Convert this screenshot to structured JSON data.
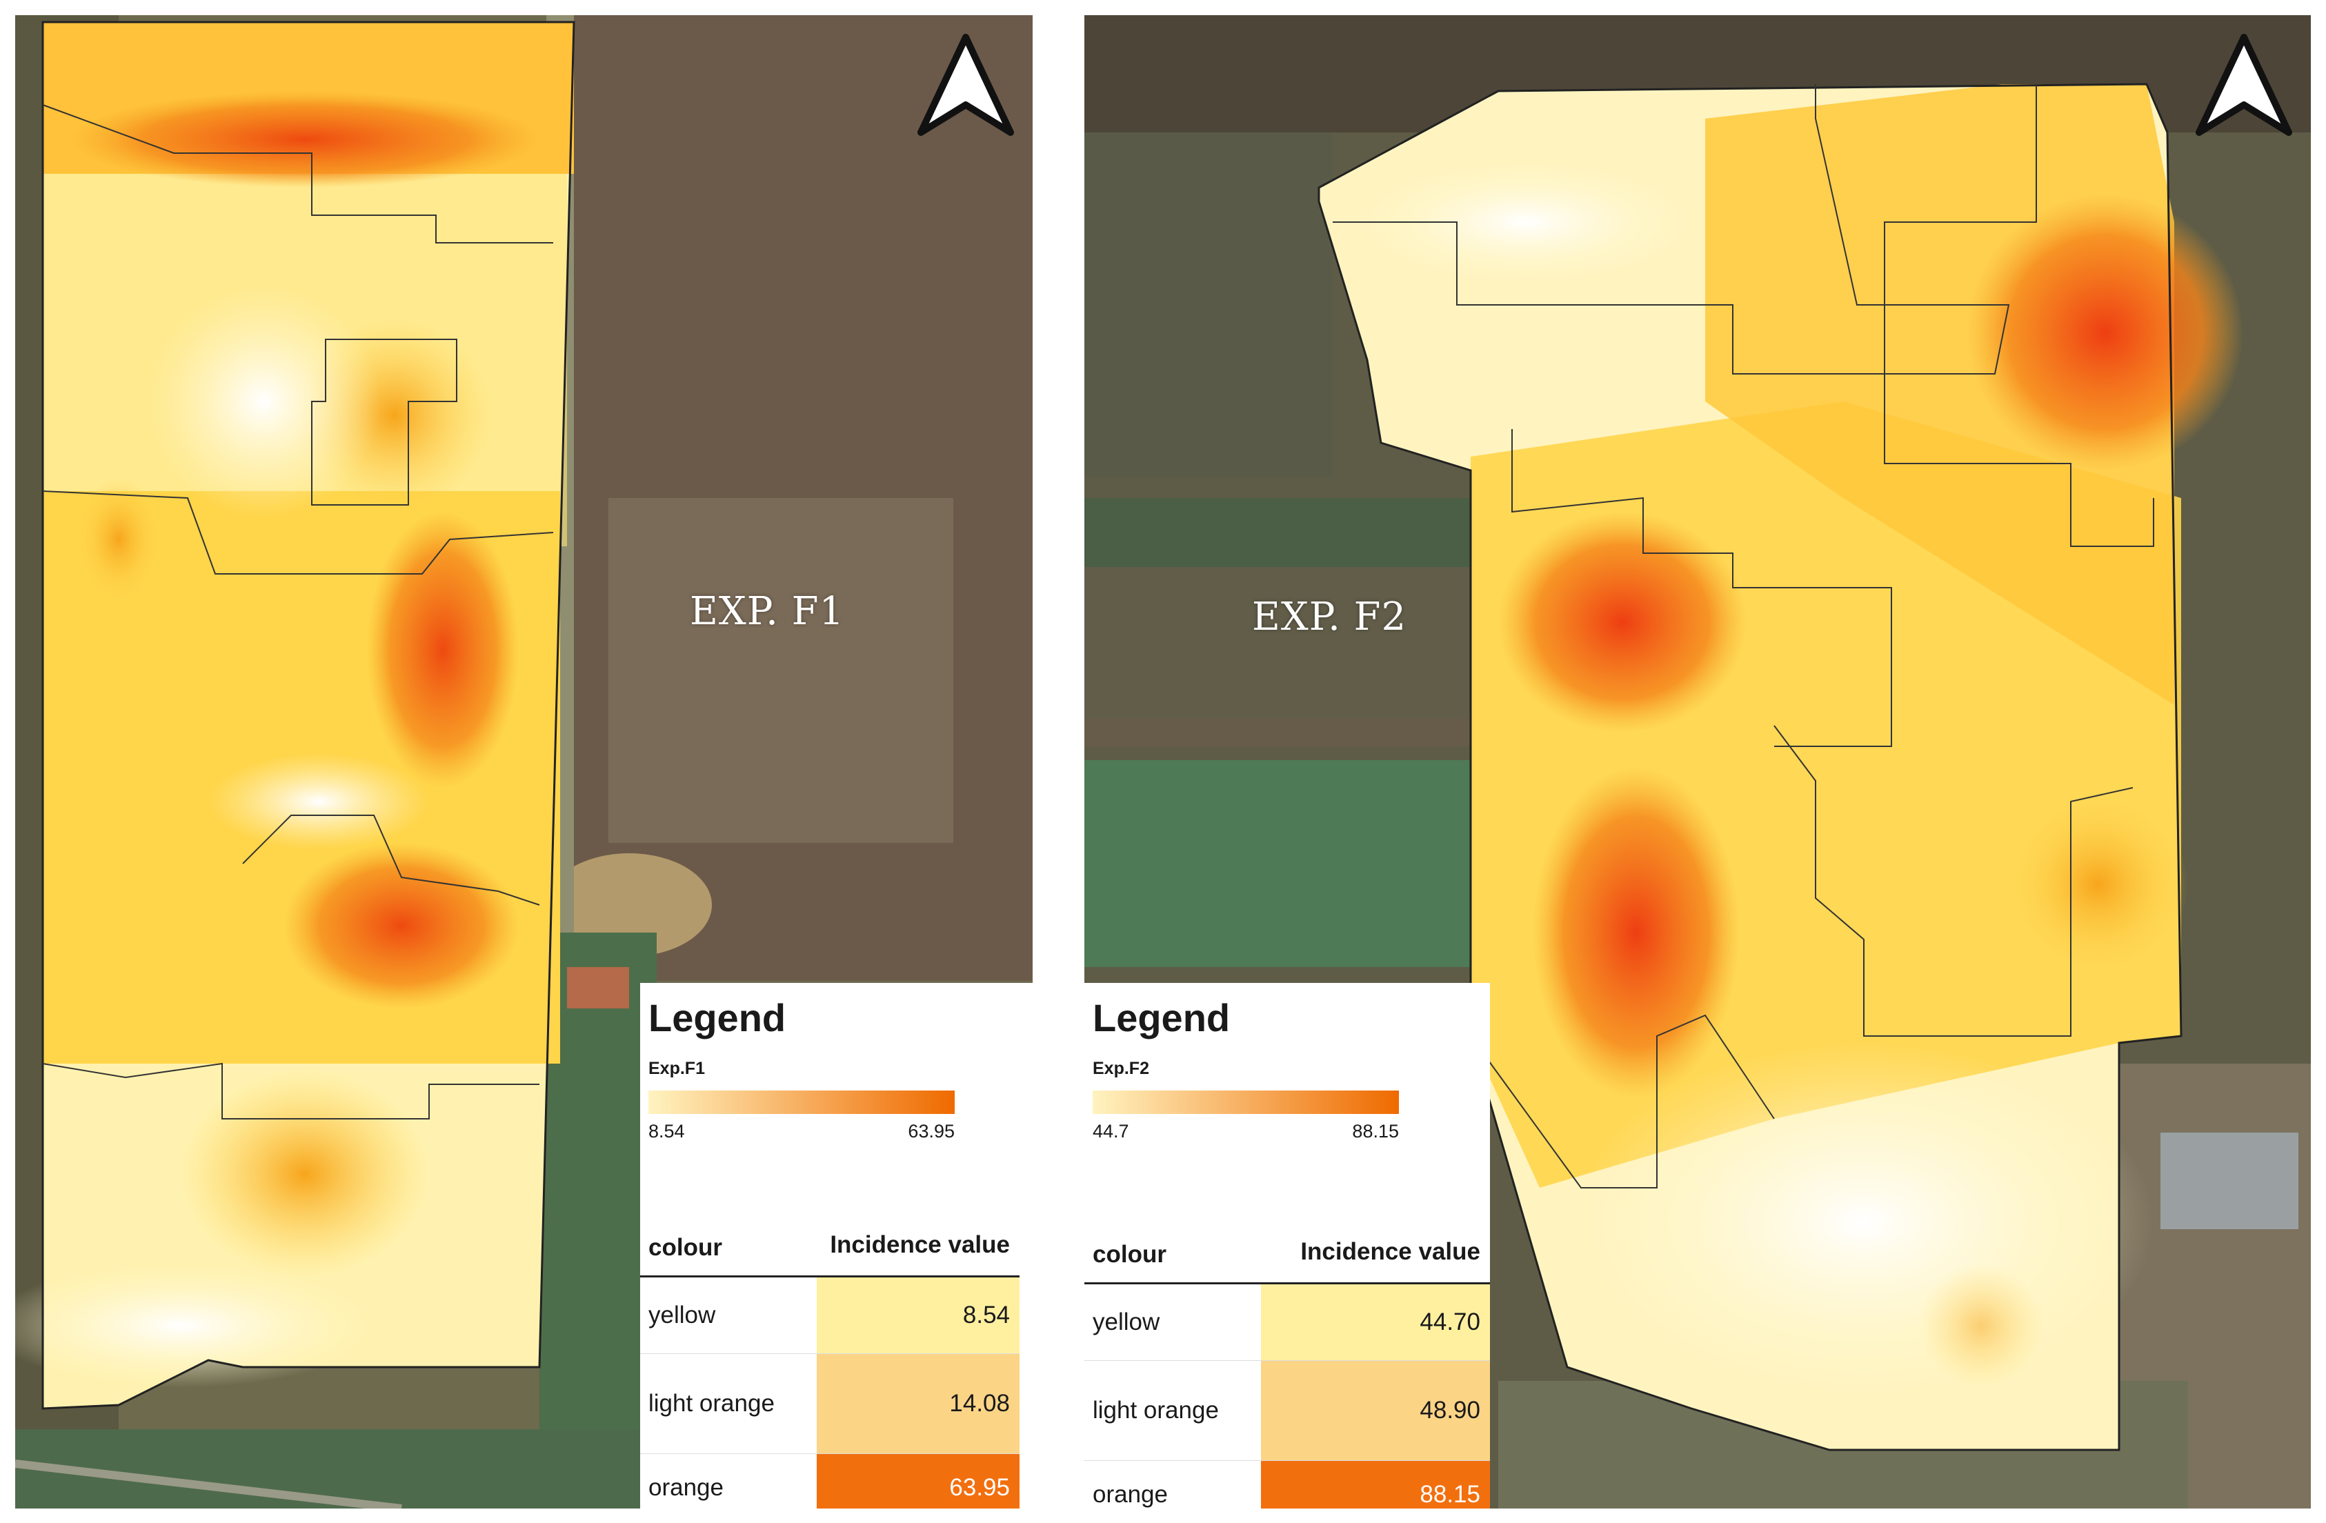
{
  "panels": [
    {
      "field_label": "EXP. F1",
      "legend": {
        "title": "Legend",
        "series": "Exp.F1",
        "ramp_min": "8.54",
        "ramp_max": "63.95",
        "header_colour": "colour",
        "header_value": "Incidence value",
        "rows": [
          {
            "colour": "yellow",
            "value": "8.54",
            "swatch": "#fff0a0"
          },
          {
            "colour": "light orange",
            "value": "14.08",
            "swatch": "#fbd486"
          },
          {
            "colour": "orange",
            "value": "63.95",
            "swatch": "#f26f0e"
          }
        ]
      }
    },
    {
      "field_label": "EXP. F2",
      "legend": {
        "title": "Legend",
        "series": "Exp.F2",
        "ramp_min": "44.7",
        "ramp_max": "88.15",
        "header_colour": "colour",
        "header_value": "Incidence value",
        "rows": [
          {
            "colour": "yellow",
            "value": "44.70",
            "swatch": "#fff0a0"
          },
          {
            "colour": "light orange",
            "value": "48.90",
            "swatch": "#fbd486"
          },
          {
            "colour": "orange",
            "value": "88.15",
            "swatch": "#f26f0e"
          }
        ]
      }
    }
  ],
  "colors": {
    "ramp_low": "#fff3c0",
    "ramp_high": "#ef6a00",
    "field_yellow": "#ffd54a",
    "field_orange": "#f5a623",
    "field_red": "#ef4e10",
    "field_pale": "#fff6c8"
  },
  "icons": [
    "north-arrow-icon"
  ]
}
